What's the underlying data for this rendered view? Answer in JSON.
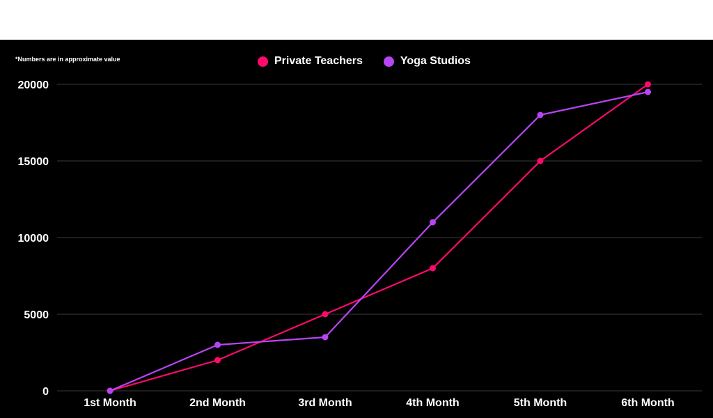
{
  "note": "*Numbers are in approximate value",
  "legend": {
    "items": [
      {
        "label": "Private Teachers",
        "color": "#ff0a6c"
      },
      {
        "label": "Yoga Studios",
        "color": "#b845f5"
      }
    ]
  },
  "chart_data": {
    "type": "line",
    "categories": [
      "1st Month",
      "2nd Month",
      "3rd Month",
      "4th Month",
      "5th Month",
      "6th Month"
    ],
    "series": [
      {
        "name": "Private Teachers",
        "color": "#ff0a6c",
        "values": [
          0,
          2000,
          5000,
          8000,
          15000,
          20000
        ]
      },
      {
        "name": "Yoga Studios",
        "color": "#b845f5",
        "values": [
          0,
          3000,
          3500,
          11000,
          18000,
          19500
        ]
      }
    ],
    "yticks": [
      "0",
      "5000",
      "10000",
      "15000",
      "20000"
    ],
    "ylim": [
      0,
      20000
    ],
    "grid": true,
    "legend_position": "top-center"
  }
}
